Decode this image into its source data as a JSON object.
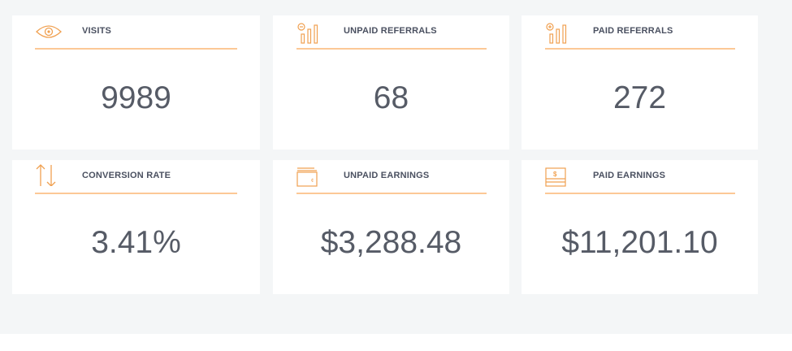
{
  "accent_color": "#f0a050",
  "stats": [
    {
      "title": "VISITS",
      "value": "9989",
      "icon": "eye-icon"
    },
    {
      "title": "UNPAID REFERRALS",
      "value": "68",
      "icon": "bar-minus-icon"
    },
    {
      "title": "PAID REFERRALS",
      "value": "272",
      "icon": "bar-plus-icon"
    },
    {
      "title": "CONVERSION RATE",
      "value": "3.41%",
      "icon": "arrows-up-down-icon"
    },
    {
      "title": "UNPAID EARNINGS",
      "value": "$3,288.48",
      "icon": "wallet-icon"
    },
    {
      "title": "PAID EARNINGS",
      "value": "$11,201.10",
      "icon": "cash-icon"
    }
  ]
}
